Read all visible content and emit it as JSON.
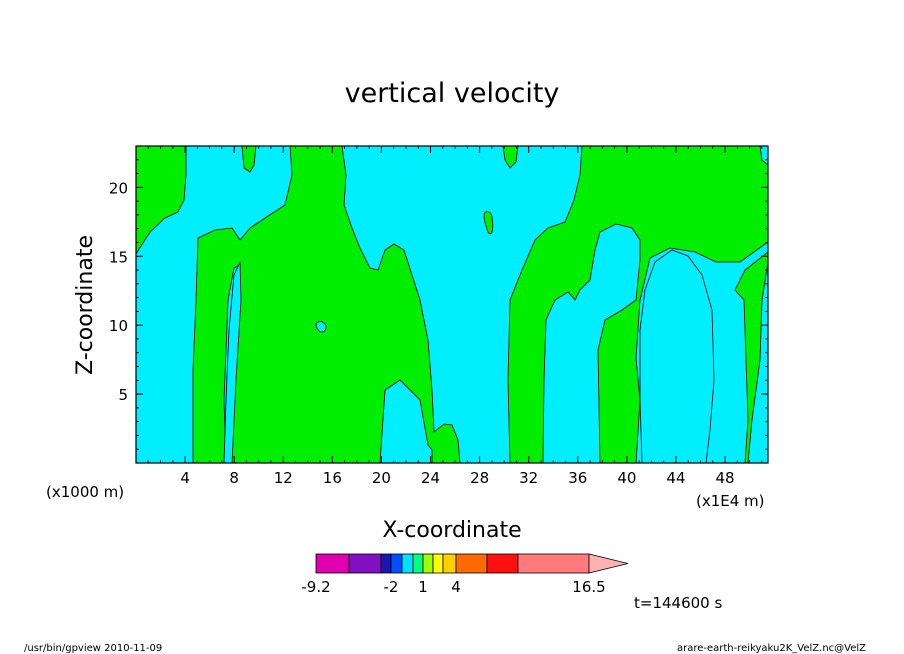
{
  "chart_data": {
    "type": "heatmap",
    "title": "vertical velocity",
    "xlabel": "X-coordinate",
    "ylabel": "Z-coordinate",
    "x_unit_left": "(x1000 m)",
    "x_unit_right": "(x1E4 m)",
    "xlim": [
      0,
      51.5
    ],
    "ylim": [
      0,
      23
    ],
    "x_ticks": [
      "4",
      "8",
      "12",
      "16",
      "20",
      "24",
      "28",
      "32",
      "36",
      "40",
      "44",
      "48"
    ],
    "y_ticks": [
      "5",
      "10",
      "15",
      "20"
    ],
    "time_label": "t=144600 s",
    "colorbar": {
      "labels": [
        "-9.2",
        "-2",
        "1",
        "4",
        "16.5"
      ],
      "colors": [
        "#e000b0",
        "#8010c0",
        "#1010b0",
        "#0050ff",
        "#00a0ff",
        "#00e8ff",
        "#00ff60",
        "#a0ff00",
        "#ffff00",
        "#ffd000",
        "#ffa000",
        "#ff6a00",
        "#ff1a1a",
        "#ff8080",
        "#ffb0b0"
      ]
    },
    "field_colors": {
      "negative": "#00eeff",
      "positive": "#00ee00"
    }
  },
  "footer": {
    "left": "/usr/bin/gpview   2010-11-09",
    "right": "arare-earth-reikyaku2K_VelZ.nc@VelZ"
  }
}
